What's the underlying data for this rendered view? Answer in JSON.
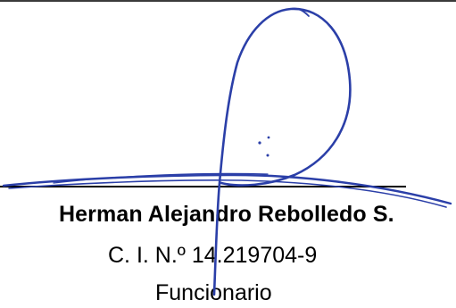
{
  "document": {
    "signer_name": "Herman Alejandro Rebolledo S.",
    "id_line": "C. I. N.º 14.219704-9",
    "role": "Funcionario"
  },
  "colors": {
    "ink_signature": "#2b3fa8",
    "text": "#000000",
    "background": "#ffffff"
  }
}
